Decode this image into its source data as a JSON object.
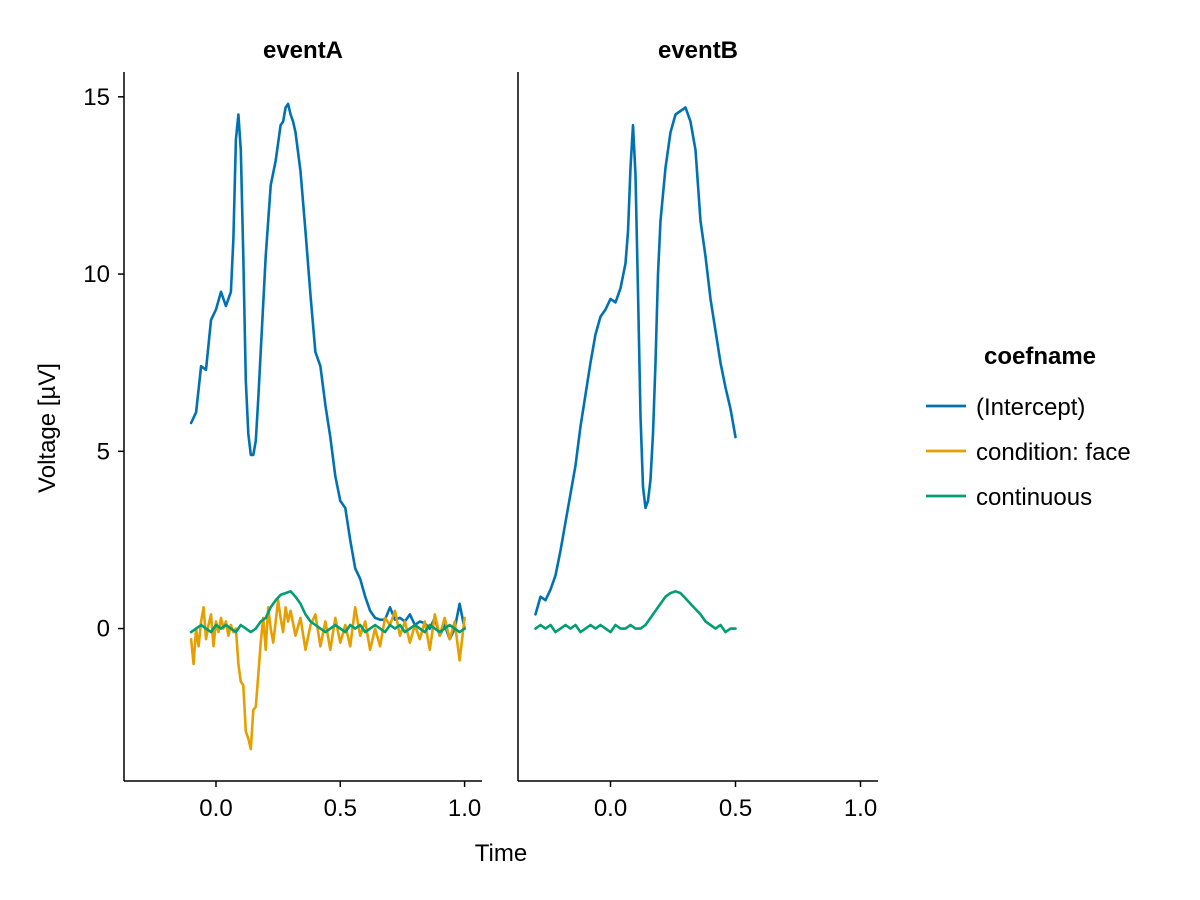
{
  "chart_data": {
    "type": "line",
    "xlabel": "Time",
    "ylabel": "Voltage [µV]",
    "legend": {
      "title": "coefname",
      "position": "right",
      "entries": [
        {
          "name": "(Intercept)",
          "color": "#0072B2"
        },
        {
          "name": "condition: face",
          "color": "#E69F00"
        },
        {
          "name": "continuous",
          "color": "#009E73"
        }
      ]
    },
    "grid": false,
    "shared_ylim": [
      -4.3,
      15.7
    ],
    "y_ticks": [
      0,
      5,
      10,
      15
    ],
    "y_tick_labels": [
      "0",
      "5",
      "10",
      "15"
    ],
    "x_ticks": [
      0.0,
      0.5,
      1.0
    ],
    "x_tick_labels": [
      "0.0",
      "0.5",
      "1.0"
    ],
    "panels": [
      {
        "title": "eventA",
        "xlim": [
          -0.37,
          1.07
        ],
        "series": [
          {
            "name": "(Intercept)",
            "color": "#0072B2",
            "x": [
              -0.1,
              -0.08,
              -0.06,
              -0.04,
              -0.02,
              0.0,
              0.02,
              0.04,
              0.06,
              0.07,
              0.08,
              0.09,
              0.1,
              0.11,
              0.12,
              0.13,
              0.14,
              0.15,
              0.16,
              0.17,
              0.18,
              0.2,
              0.22,
              0.24,
              0.26,
              0.27,
              0.28,
              0.29,
              0.3,
              0.31,
              0.32,
              0.34,
              0.36,
              0.38,
              0.4,
              0.42,
              0.44,
              0.46,
              0.48,
              0.5,
              0.52,
              0.54,
              0.56,
              0.58,
              0.6,
              0.62,
              0.64,
              0.66,
              0.68,
              0.7,
              0.72,
              0.74,
              0.76,
              0.78,
              0.8,
              0.82,
              0.84,
              0.86,
              0.88,
              0.9,
              0.92,
              0.94,
              0.96,
              0.98,
              1.0
            ],
            "values": [
              5.8,
              6.1,
              7.4,
              7.3,
              8.7,
              9.0,
              9.5,
              9.1,
              9.5,
              11.0,
              13.8,
              14.5,
              13.5,
              10.5,
              7.0,
              5.5,
              4.9,
              4.9,
              5.3,
              6.5,
              7.8,
              10.5,
              12.5,
              13.2,
              14.2,
              14.3,
              14.7,
              14.8,
              14.5,
              14.3,
              14.0,
              12.9,
              11.2,
              9.4,
              7.8,
              7.4,
              6.3,
              5.4,
              4.3,
              3.6,
              3.4,
              2.5,
              1.7,
              1.4,
              0.9,
              0.5,
              0.3,
              0.25,
              0.25,
              0.6,
              0.25,
              0.3,
              0.2,
              0.4,
              0.1,
              0.2,
              0.15,
              0.0,
              0.3,
              -0.2,
              0.1,
              -0.3,
              0.0,
              0.7,
              0.0
            ]
          },
          {
            "name": "condition: face",
            "color": "#E69F00",
            "x": [
              -0.1,
              -0.09,
              -0.08,
              -0.07,
              -0.06,
              -0.05,
              -0.04,
              -0.03,
              -0.02,
              -0.01,
              0.0,
              0.01,
              0.02,
              0.03,
              0.04,
              0.05,
              0.06,
              0.07,
              0.08,
              0.09,
              0.1,
              0.11,
              0.12,
              0.13,
              0.14,
              0.15,
              0.16,
              0.17,
              0.18,
              0.19,
              0.2,
              0.21,
              0.22,
              0.23,
              0.24,
              0.25,
              0.26,
              0.27,
              0.28,
              0.29,
              0.3,
              0.32,
              0.34,
              0.36,
              0.38,
              0.4,
              0.42,
              0.44,
              0.46,
              0.48,
              0.5,
              0.52,
              0.54,
              0.56,
              0.58,
              0.6,
              0.62,
              0.64,
              0.66,
              0.68,
              0.7,
              0.72,
              0.74,
              0.76,
              0.78,
              0.8,
              0.82,
              0.84,
              0.86,
              0.88,
              0.9,
              0.92,
              0.94,
              0.96,
              0.98,
              1.0
            ],
            "values": [
              -0.3,
              -1.0,
              0.0,
              -0.5,
              0.2,
              0.6,
              -0.3,
              0.1,
              0.4,
              -0.5,
              0.2,
              -0.1,
              0.3,
              0.0,
              0.2,
              -0.2,
              0.1,
              -0.1,
              0.0,
              -1.0,
              -1.5,
              -1.6,
              -2.9,
              -3.1,
              -3.4,
              -2.3,
              -2.2,
              -1.3,
              -0.4,
              0.3,
              -0.6,
              0.6,
              0.0,
              -0.4,
              0.2,
              0.8,
              0.3,
              -0.1,
              0.6,
              0.2,
              0.5,
              -0.2,
              0.3,
              -0.6,
              0.1,
              0.4,
              -0.5,
              0.2,
              -0.6,
              0.3,
              -0.4,
              0.1,
              -0.5,
              0.6,
              -0.2,
              0.2,
              -0.6,
              0.0,
              -0.5,
              0.3,
              0.1,
              0.5,
              -0.2,
              0.2,
              -0.4,
              0.1,
              -0.3,
              0.2,
              -0.6,
              0.4,
              -0.2,
              0.3,
              -0.3,
              0.2,
              -0.9,
              0.3
            ]
          },
          {
            "name": "continuous",
            "color": "#009E73",
            "x": [
              -0.1,
              -0.08,
              -0.06,
              -0.04,
              -0.02,
              0.0,
              0.02,
              0.04,
              0.06,
              0.08,
              0.1,
              0.12,
              0.14,
              0.16,
              0.18,
              0.2,
              0.22,
              0.24,
              0.26,
              0.28,
              0.3,
              0.32,
              0.34,
              0.36,
              0.38,
              0.4,
              0.42,
              0.44,
              0.46,
              0.48,
              0.5,
              0.52,
              0.54,
              0.56,
              0.58,
              0.6,
              0.62,
              0.64,
              0.66,
              0.68,
              0.7,
              0.72,
              0.74,
              0.76,
              0.78,
              0.8,
              0.82,
              0.84,
              0.86,
              0.88,
              0.9,
              0.92,
              0.94,
              0.96,
              0.98,
              1.0
            ],
            "values": [
              -0.1,
              0.0,
              0.1,
              0.0,
              -0.1,
              0.1,
              0.0,
              0.1,
              0.0,
              -0.1,
              0.1,
              0.0,
              -0.1,
              0.0,
              0.2,
              0.3,
              0.6,
              0.8,
              0.95,
              1.0,
              1.05,
              0.9,
              0.7,
              0.4,
              0.2,
              0.1,
              0.0,
              -0.1,
              0.0,
              0.1,
              0.0,
              -0.1,
              0.1,
              0.0,
              0.1,
              -0.1,
              0.0,
              0.1,
              0.0,
              -0.1,
              0.1,
              0.0,
              0.1,
              -0.1,
              0.0,
              0.1,
              0.0,
              -0.1,
              0.1,
              0.0,
              -0.1,
              0.0,
              0.1,
              0.0,
              -0.1,
              0.0
            ]
          }
        ]
      },
      {
        "title": "eventB",
        "xlim": [
          -0.37,
          1.07
        ],
        "series": [
          {
            "name": "(Intercept)",
            "color": "#0072B2",
            "x": [
              -0.3,
              -0.28,
              -0.26,
              -0.24,
              -0.22,
              -0.2,
              -0.18,
              -0.16,
              -0.14,
              -0.12,
              -0.1,
              -0.08,
              -0.06,
              -0.04,
              -0.02,
              0.0,
              0.02,
              0.04,
              0.06,
              0.07,
              0.08,
              0.09,
              0.1,
              0.11,
              0.12,
              0.13,
              0.14,
              0.15,
              0.16,
              0.17,
              0.18,
              0.19,
              0.2,
              0.22,
              0.24,
              0.26,
              0.28,
              0.3,
              0.32,
              0.34,
              0.36,
              0.38,
              0.4,
              0.42,
              0.44,
              0.46,
              0.48,
              0.5
            ],
            "values": [
              0.4,
              0.9,
              0.8,
              1.1,
              1.5,
              2.2,
              3.0,
              3.8,
              4.6,
              5.7,
              6.6,
              7.5,
              8.3,
              8.8,
              9.0,
              9.3,
              9.2,
              9.6,
              10.3,
              11.2,
              13.0,
              14.2,
              12.8,
              9.5,
              6.0,
              4.0,
              3.4,
              3.6,
              4.2,
              5.5,
              7.5,
              10.0,
              11.5,
              13.0,
              14.0,
              14.5,
              14.6,
              14.7,
              14.3,
              13.5,
              11.5,
              10.5,
              9.3,
              8.4,
              7.5,
              6.8,
              6.2,
              5.4
            ]
          },
          {
            "name": "continuous",
            "color": "#009E73",
            "x": [
              -0.3,
              -0.28,
              -0.26,
              -0.24,
              -0.22,
              -0.2,
              -0.18,
              -0.16,
              -0.14,
              -0.12,
              -0.1,
              -0.08,
              -0.06,
              -0.04,
              -0.02,
              0.0,
              0.02,
              0.04,
              0.06,
              0.08,
              0.1,
              0.12,
              0.14,
              0.16,
              0.18,
              0.2,
              0.22,
              0.24,
              0.26,
              0.28,
              0.3,
              0.32,
              0.34,
              0.36,
              0.38,
              0.4,
              0.42,
              0.44,
              0.46,
              0.48,
              0.5
            ],
            "values": [
              0.0,
              0.1,
              0.0,
              0.1,
              -0.1,
              0.0,
              0.1,
              0.0,
              0.1,
              -0.1,
              0.0,
              0.1,
              0.0,
              0.1,
              0.0,
              -0.1,
              0.1,
              0.0,
              0.0,
              0.1,
              0.0,
              0.0,
              0.1,
              0.3,
              0.5,
              0.7,
              0.9,
              1.0,
              1.05,
              1.0,
              0.85,
              0.7,
              0.55,
              0.4,
              0.2,
              0.1,
              0.0,
              0.1,
              -0.1,
              0.0,
              0.0
            ]
          }
        ]
      }
    ]
  }
}
